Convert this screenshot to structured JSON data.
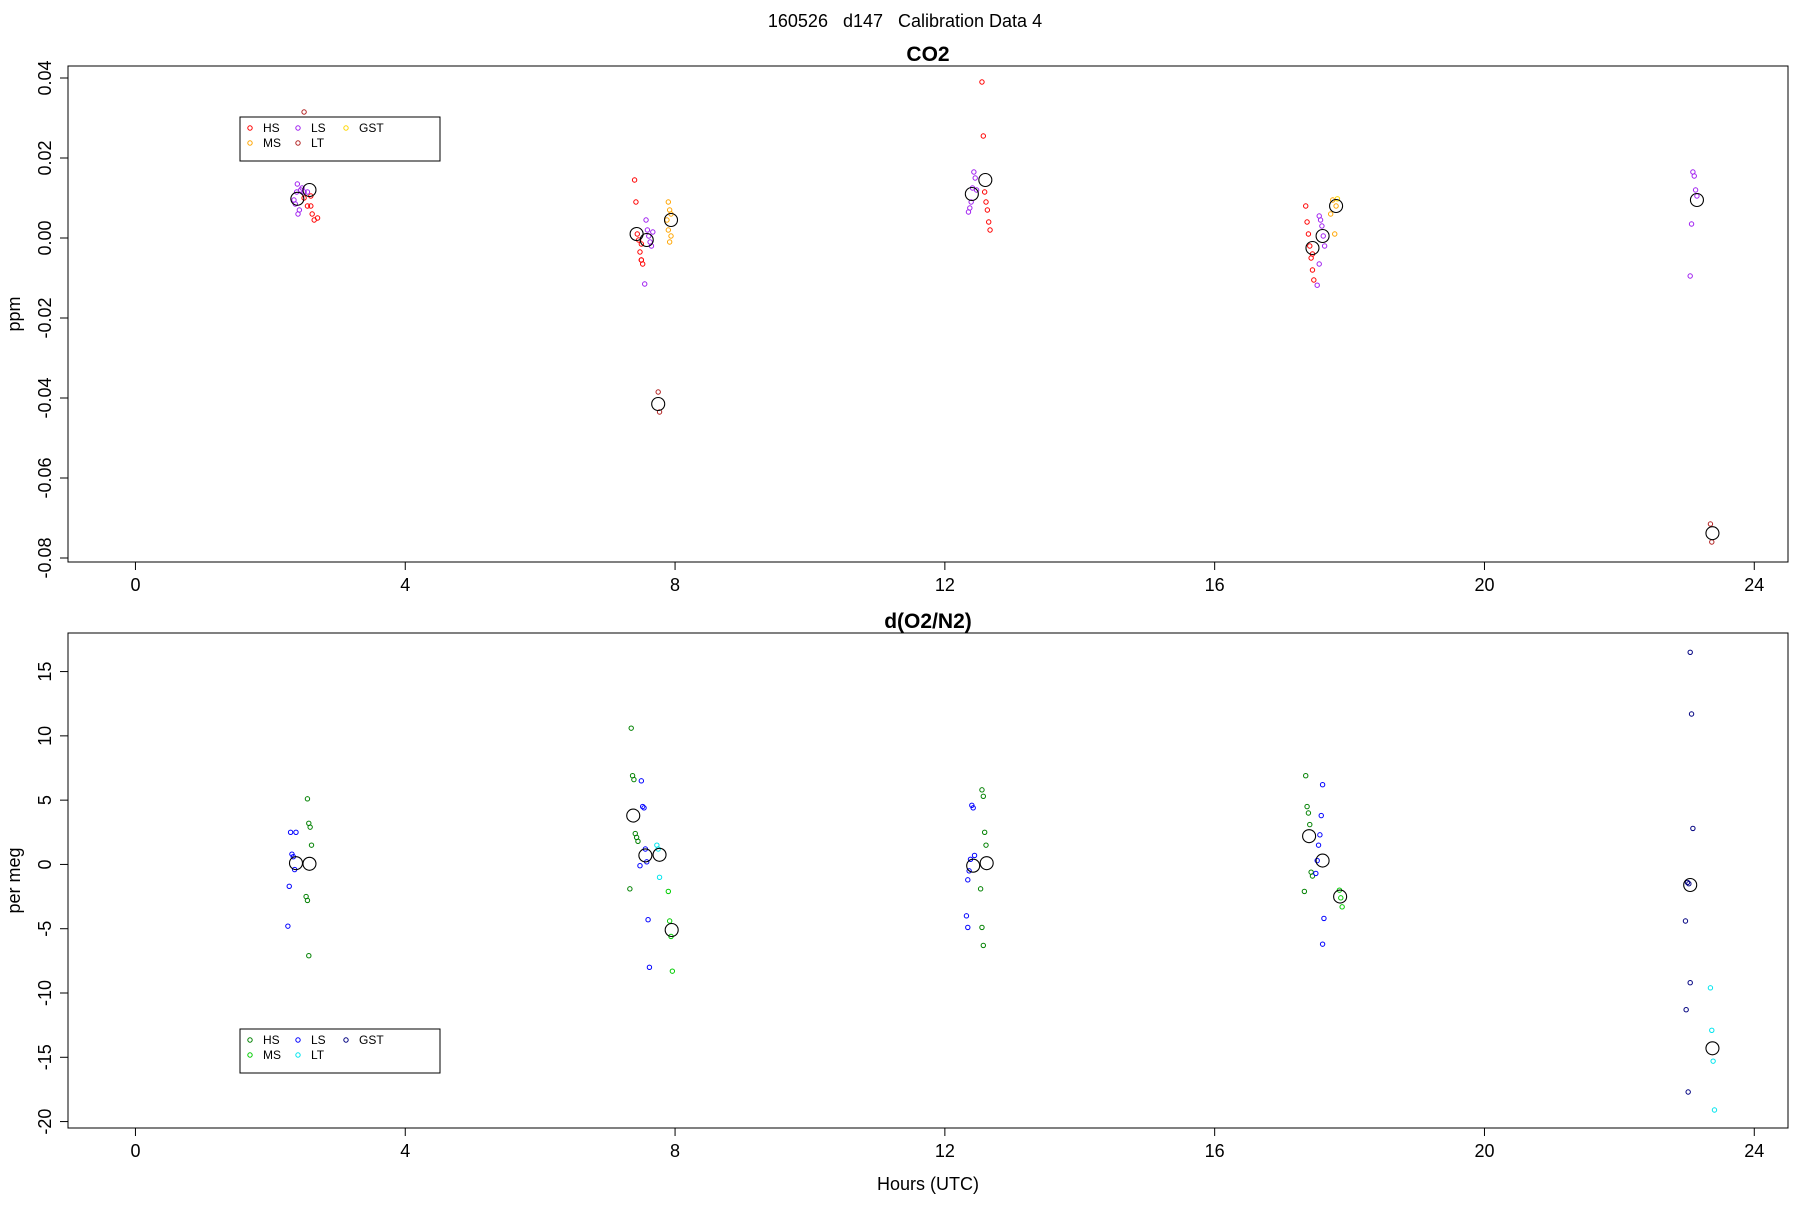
{
  "page_title": "160526   d147   Calibration Data 4",
  "chart_data": [
    {
      "type": "scatter",
      "title": "CO2",
      "xlabel": "",
      "ylabel": "ppm",
      "xlim": [
        -1.0,
        24.5
      ],
      "ylim": [
        -0.081,
        0.043
      ],
      "x_ticks": [
        0,
        4,
        8,
        12,
        16,
        20,
        24
      ],
      "x_tick_labels": [
        "0",
        "4",
        "8",
        "12",
        "16",
        "20",
        "24"
      ],
      "y_ticks": [
        -0.08,
        -0.06,
        -0.04,
        -0.02,
        0.0,
        0.02,
        0.04
      ],
      "y_tick_labels": [
        "-0.08",
        "-0.06",
        "-0.04",
        "-0.02",
        "0.00",
        "0.02",
        "0.04"
      ],
      "grid": false,
      "legend_position": "top-left",
      "legend": [
        {
          "name": "HS",
          "color": "#ff0000"
        },
        {
          "name": "MS",
          "color": "#ffa500"
        },
        {
          "name": "LS",
          "color": "#a020f0"
        },
        {
          "name": "LT",
          "color": "#b22222"
        },
        {
          "name": "GST",
          "color": "#ffd700"
        }
      ],
      "series": [
        {
          "name": "HS",
          "color": "#ff0000",
          "points": [
            [
              2.5,
              0.01
            ],
            [
              2.55,
              0.008
            ],
            [
              2.6,
              0.008
            ],
            [
              2.62,
              0.006
            ],
            [
              2.65,
              0.0045
            ],
            [
              2.7,
              0.005
            ],
            [
              2.6,
              0.0105
            ],
            [
              7.4,
              0.0145
            ],
            [
              7.42,
              0.009
            ],
            [
              7.44,
              0.001
            ],
            [
              7.46,
              -0.0005
            ],
            [
              7.48,
              -0.0035
            ],
            [
              7.5,
              -0.0055
            ],
            [
              7.5,
              -0.0055
            ],
            [
              7.52,
              -0.0065
            ],
            [
              7.5,
              -0.0015
            ],
            [
              12.55,
              0.039
            ],
            [
              12.57,
              0.0255
            ],
            [
              12.59,
              0.0115
            ],
            [
              12.61,
              0.009
            ],
            [
              12.63,
              0.007
            ],
            [
              12.65,
              0.004
            ],
            [
              12.67,
              0.002
            ],
            [
              17.35,
              0.008
            ],
            [
              17.37,
              0.004
            ],
            [
              17.39,
              0.001
            ],
            [
              17.41,
              -0.002
            ],
            [
              17.43,
              -0.005
            ],
            [
              17.45,
              -0.008
            ],
            [
              17.47,
              -0.0105
            ],
            [
              17.45,
              -0.004
            ]
          ]
        },
        {
          "name": "MS",
          "color": "#ffa500",
          "points": [
            [
              7.9,
              0.009
            ],
            [
              7.92,
              0.007
            ],
            [
              7.94,
              0.006
            ],
            [
              7.88,
              0.0045
            ],
            [
              7.9,
              0.002
            ],
            [
              7.92,
              -0.001
            ],
            [
              7.94,
              0.0005
            ],
            [
              17.75,
              0.0095
            ],
            [
              17.8,
              0.008
            ],
            [
              17.72,
              0.006
            ],
            [
              17.78,
              0.001
            ]
          ]
        },
        {
          "name": "LS",
          "color": "#a020f0",
          "points": [
            [
              2.35,
              0.0095
            ],
            [
              2.37,
              0.0085
            ],
            [
              2.39,
              0.0115
            ],
            [
              2.4,
              0.0135
            ],
            [
              2.41,
              0.006
            ],
            [
              2.43,
              0.007
            ],
            [
              2.45,
              0.012
            ],
            [
              2.47,
              0.0125
            ],
            [
              2.5,
              0.0115
            ],
            [
              2.55,
              0.0115
            ],
            [
              7.55,
              -0.0115
            ],
            [
              7.57,
              0.0045
            ],
            [
              7.59,
              0.002
            ],
            [
              7.61,
              0.0005
            ],
            [
              7.63,
              -0.001
            ],
            [
              7.65,
              -0.002
            ],
            [
              7.67,
              0.0015
            ],
            [
              12.35,
              0.0065
            ],
            [
              12.37,
              0.0075
            ],
            [
              12.39,
              0.009
            ],
            [
              12.41,
              0.0125
            ],
            [
              12.43,
              0.0165
            ],
            [
              12.45,
              0.015
            ],
            [
              12.47,
              0.012
            ],
            [
              17.55,
              0.0055
            ],
            [
              17.57,
              0.0045
            ],
            [
              17.59,
              0.003
            ],
            [
              17.61,
              0.0005
            ],
            [
              17.63,
              -0.002
            ],
            [
              17.55,
              -0.0065
            ],
            [
              17.52,
              -0.0118
            ],
            [
              23.05,
              -0.0095
            ],
            [
              23.07,
              0.0035
            ],
            [
              23.09,
              0.0165
            ],
            [
              23.11,
              0.0155
            ],
            [
              23.13,
              0.012
            ],
            [
              23.15,
              0.0105
            ]
          ]
        },
        {
          "name": "LT",
          "color": "#b22222",
          "points": [
            [
              2.5,
              0.0315
            ],
            [
              7.75,
              -0.0385
            ],
            [
              7.77,
              -0.0435
            ],
            [
              23.35,
              -0.0715
            ],
            [
              23.37,
              -0.076
            ]
          ]
        },
        {
          "name": "GST",
          "color": "#ffd700",
          "points": [
            [
              17.82,
              0.0098
            ]
          ]
        }
      ],
      "means": [
        [
          2.4,
          0.0098
        ],
        [
          2.58,
          0.012
        ],
        [
          7.43,
          0.001
        ],
        [
          7.58,
          -0.0005
        ],
        [
          7.94,
          0.0045
        ],
        [
          7.75,
          -0.0415
        ],
        [
          12.4,
          0.011
        ],
        [
          12.6,
          0.0145
        ],
        [
          17.45,
          -0.0025
        ],
        [
          17.6,
          0.0005
        ],
        [
          17.8,
          0.008
        ],
        [
          23.15,
          0.0095
        ],
        [
          23.38,
          -0.0738
        ]
      ]
    },
    {
      "type": "scatter",
      "title": "d(O2/N2)",
      "xlabel": "Hours (UTC)",
      "ylabel": "per meg",
      "xlim": [
        -1.0,
        24.5
      ],
      "ylim": [
        -20.5,
        18.0
      ],
      "x_ticks": [
        0,
        4,
        8,
        12,
        16,
        20,
        24
      ],
      "x_tick_labels": [
        "0",
        "4",
        "8",
        "12",
        "16",
        "20",
        "24"
      ],
      "y_ticks": [
        -20,
        -15,
        -10,
        -5,
        0,
        5,
        10,
        15
      ],
      "y_tick_labels": [
        "-20",
        "-15",
        "-10",
        "-5",
        "0",
        "5",
        "10",
        "15"
      ],
      "grid": false,
      "legend_position": "bottom-left",
      "legend": [
        {
          "name": "HS",
          "color": "#008000"
        },
        {
          "name": "MS",
          "color": "#00cc00"
        },
        {
          "name": "LS",
          "color": "#0000ff"
        },
        {
          "name": "LT",
          "color": "#00e5ee"
        },
        {
          "name": "GST",
          "color": "#000080"
        }
      ],
      "series": [
        {
          "name": "HS",
          "color": "#008000",
          "points": [
            [
              2.55,
              5.1
            ],
            [
              2.57,
              3.2
            ],
            [
              2.59,
              2.9
            ],
            [
              2.61,
              1.5
            ],
            [
              2.53,
              -2.5
            ],
            [
              2.55,
              -2.8
            ],
            [
              2.57,
              -7.1
            ],
            [
              7.35,
              10.6
            ],
            [
              7.37,
              6.9
            ],
            [
              7.39,
              6.6
            ],
            [
              7.41,
              2.4
            ],
            [
              7.43,
              2.1
            ],
            [
              7.45,
              1.8
            ],
            [
              7.33,
              -1.9
            ],
            [
              12.55,
              5.8
            ],
            [
              12.57,
              5.3
            ],
            [
              12.59,
              2.5
            ],
            [
              12.61,
              1.5
            ],
            [
              12.53,
              -1.9
            ],
            [
              12.55,
              -4.9
            ],
            [
              12.57,
              -6.3
            ],
            [
              17.35,
              6.9
            ],
            [
              17.37,
              4.5
            ],
            [
              17.39,
              4.0
            ],
            [
              17.41,
              3.1
            ],
            [
              17.43,
              -0.6
            ],
            [
              17.45,
              -0.9
            ],
            [
              17.33,
              -2.1
            ]
          ]
        },
        {
          "name": "MS",
          "color": "#00cc00",
          "points": [
            [
              7.9,
              -2.1
            ],
            [
              7.92,
              -4.4
            ],
            [
              7.94,
              -5.6
            ],
            [
              7.96,
              -8.3
            ],
            [
              17.85,
              -2.0
            ],
            [
              17.87,
              -2.6
            ],
            [
              17.89,
              -3.3
            ]
          ]
        },
        {
          "name": "LS",
          "color": "#0000ff",
          "points": [
            [
              2.3,
              2.5
            ],
            [
              2.32,
              0.8
            ],
            [
              2.34,
              0.6
            ],
            [
              2.36,
              -0.4
            ],
            [
              2.38,
              2.5
            ],
            [
              2.28,
              -1.7
            ],
            [
              2.26,
              -4.8
            ],
            [
              7.5,
              6.5
            ],
            [
              7.52,
              4.5
            ],
            [
              7.54,
              4.4
            ],
            [
              7.56,
              1.2
            ],
            [
              7.58,
              0.2
            ],
            [
              7.48,
              -0.1
            ],
            [
              7.6,
              -4.3
            ],
            [
              7.62,
              -8.0
            ],
            [
              12.4,
              4.6
            ],
            [
              12.42,
              4.4
            ],
            [
              12.44,
              0.7
            ],
            [
              12.38,
              0.4
            ],
            [
              12.36,
              -0.5
            ],
            [
              12.34,
              -1.2
            ],
            [
              12.32,
              -4.0
            ],
            [
              12.34,
              -4.9
            ],
            [
              17.6,
              6.2
            ],
            [
              17.58,
              3.8
            ],
            [
              17.56,
              2.3
            ],
            [
              17.54,
              1.5
            ],
            [
              17.52,
              0.3
            ],
            [
              17.5,
              -0.7
            ],
            [
              17.62,
              -4.2
            ],
            [
              17.6,
              -6.2
            ]
          ]
        },
        {
          "name": "LT",
          "color": "#00e5ee",
          "points": [
            [
              7.73,
              1.5
            ],
            [
              7.75,
              1.2
            ],
            [
              7.77,
              -1.0
            ],
            [
              23.35,
              -9.6
            ],
            [
              23.37,
              -12.9
            ],
            [
              23.39,
              -15.3
            ],
            [
              23.41,
              -19.1
            ]
          ]
        },
        {
          "name": "GST",
          "color": "#000080",
          "points": [
            [
              23.05,
              16.5
            ],
            [
              23.07,
              11.7
            ],
            [
              23.09,
              2.8
            ],
            [
              23.01,
              -1.4
            ],
            [
              23.03,
              -1.5
            ],
            [
              22.98,
              -4.4
            ],
            [
              23.05,
              -9.2
            ],
            [
              22.99,
              -11.3
            ],
            [
              23.02,
              -17.7
            ]
          ]
        }
      ],
      "means": [
        [
          2.38,
          0.1
        ],
        [
          2.58,
          0.05
        ],
        [
          7.38,
          3.8
        ],
        [
          7.56,
          0.7
        ],
        [
          7.77,
          0.75
        ],
        [
          7.95,
          -5.1
        ],
        [
          12.42,
          -0.1
        ],
        [
          12.62,
          0.1
        ],
        [
          17.4,
          2.2
        ],
        [
          17.6,
          0.3
        ],
        [
          17.86,
          -2.5
        ],
        [
          23.05,
          -1.6
        ],
        [
          23.38,
          -14.3
        ]
      ]
    }
  ]
}
